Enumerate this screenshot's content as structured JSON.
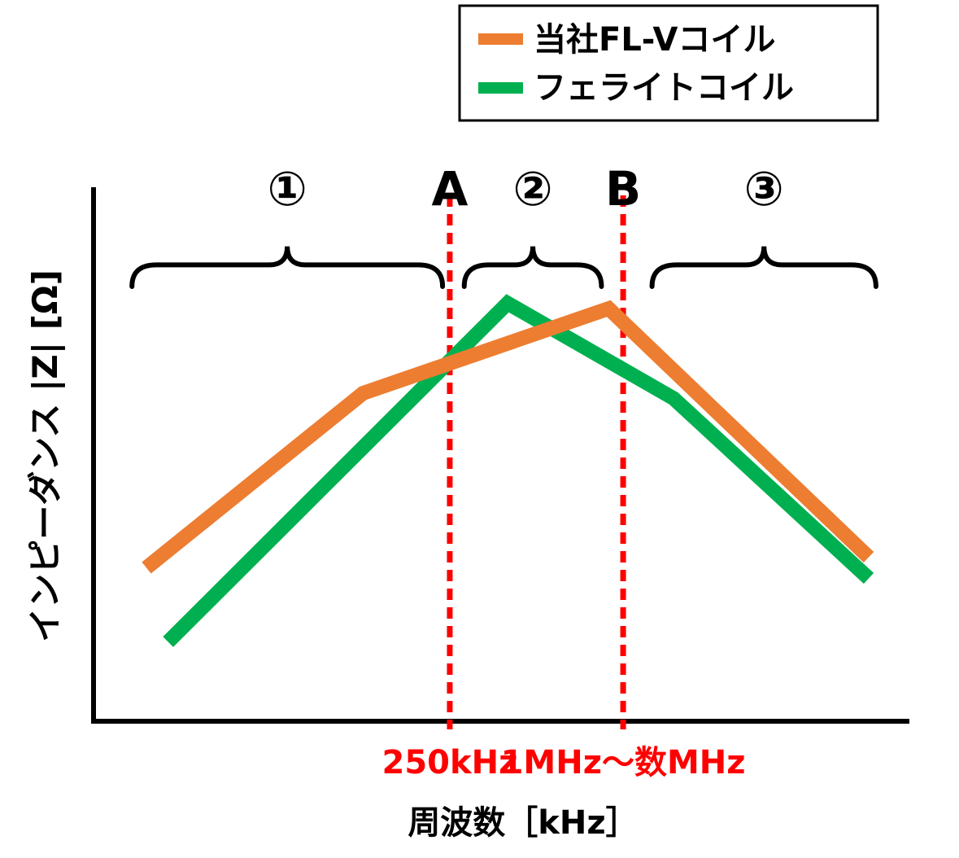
{
  "chart_data": {
    "type": "line",
    "xlabel": "周波数［kHz］",
    "ylabel": "インピーダンス |Z| [Ω]",
    "legend_position": "top-right",
    "series": [
      {
        "name": "当社FL-Vコイル",
        "color": "#ED7D31",
        "points": [
          [
            0.0,
            0.29
          ],
          [
            0.3,
            0.62
          ],
          [
            0.64,
            0.78
          ],
          [
            1.0,
            0.31
          ]
        ]
      },
      {
        "name": "フェライトコイル",
        "color": "#00B050",
        "points": [
          [
            0.03,
            0.15
          ],
          [
            0.5,
            0.79
          ],
          [
            0.73,
            0.61
          ],
          [
            1.0,
            0.27
          ]
        ]
      }
    ],
    "markers": [
      {
        "label": "A",
        "tick": "250kHz",
        "x": 0.42,
        "color": "#FF0000"
      },
      {
        "label": "B",
        "tick": "1MHz～数MHz",
        "x": 0.66,
        "color": "#FF0000"
      }
    ],
    "regions": [
      {
        "label": "①",
        "from": -0.02,
        "to": 0.41
      },
      {
        "label": "②",
        "from": 0.44,
        "to": 0.63
      },
      {
        "label": "③",
        "from": 0.7,
        "to": 1.01
      }
    ]
  }
}
